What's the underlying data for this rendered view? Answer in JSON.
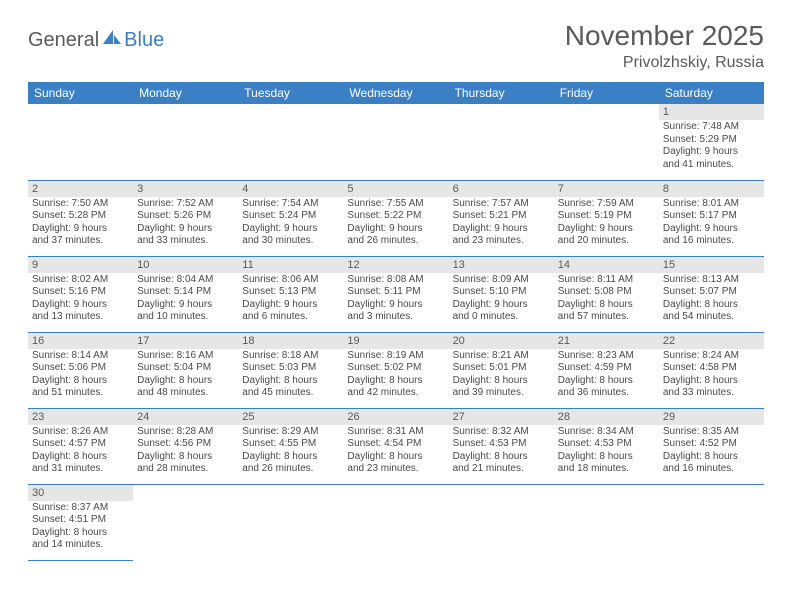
{
  "logo": {
    "part1": "General",
    "part2": "Blue"
  },
  "title": "November 2025",
  "location": "Privolzhskiy, Russia",
  "colors": {
    "header_bg": "#3b7fc4",
    "header_text": "#ffffff",
    "daynum_bg": "#e6e6e6",
    "text": "#5a5a5a",
    "cell_border": "#3b7fc4",
    "background": "#ffffff"
  },
  "weekdays": [
    "Sunday",
    "Monday",
    "Tuesday",
    "Wednesday",
    "Thursday",
    "Friday",
    "Saturday"
  ],
  "days": {
    "1": {
      "sunrise": "7:48 AM",
      "sunset": "5:29 PM",
      "daylight": "9 hours and 41 minutes."
    },
    "2": {
      "sunrise": "7:50 AM",
      "sunset": "5:28 PM",
      "daylight": "9 hours and 37 minutes."
    },
    "3": {
      "sunrise": "7:52 AM",
      "sunset": "5:26 PM",
      "daylight": "9 hours and 33 minutes."
    },
    "4": {
      "sunrise": "7:54 AM",
      "sunset": "5:24 PM",
      "daylight": "9 hours and 30 minutes."
    },
    "5": {
      "sunrise": "7:55 AM",
      "sunset": "5:22 PM",
      "daylight": "9 hours and 26 minutes."
    },
    "6": {
      "sunrise": "7:57 AM",
      "sunset": "5:21 PM",
      "daylight": "9 hours and 23 minutes."
    },
    "7": {
      "sunrise": "7:59 AM",
      "sunset": "5:19 PM",
      "daylight": "9 hours and 20 minutes."
    },
    "8": {
      "sunrise": "8:01 AM",
      "sunset": "5:17 PM",
      "daylight": "9 hours and 16 minutes."
    },
    "9": {
      "sunrise": "8:02 AM",
      "sunset": "5:16 PM",
      "daylight": "9 hours and 13 minutes."
    },
    "10": {
      "sunrise": "8:04 AM",
      "sunset": "5:14 PM",
      "daylight": "9 hours and 10 minutes."
    },
    "11": {
      "sunrise": "8:06 AM",
      "sunset": "5:13 PM",
      "daylight": "9 hours and 6 minutes."
    },
    "12": {
      "sunrise": "8:08 AM",
      "sunset": "5:11 PM",
      "daylight": "9 hours and 3 minutes."
    },
    "13": {
      "sunrise": "8:09 AM",
      "sunset": "5:10 PM",
      "daylight": "9 hours and 0 minutes."
    },
    "14": {
      "sunrise": "8:11 AM",
      "sunset": "5:08 PM",
      "daylight": "8 hours and 57 minutes."
    },
    "15": {
      "sunrise": "8:13 AM",
      "sunset": "5:07 PM",
      "daylight": "8 hours and 54 minutes."
    },
    "16": {
      "sunrise": "8:14 AM",
      "sunset": "5:06 PM",
      "daylight": "8 hours and 51 minutes."
    },
    "17": {
      "sunrise": "8:16 AM",
      "sunset": "5:04 PM",
      "daylight": "8 hours and 48 minutes."
    },
    "18": {
      "sunrise": "8:18 AM",
      "sunset": "5:03 PM",
      "daylight": "8 hours and 45 minutes."
    },
    "19": {
      "sunrise": "8:19 AM",
      "sunset": "5:02 PM",
      "daylight": "8 hours and 42 minutes."
    },
    "20": {
      "sunrise": "8:21 AM",
      "sunset": "5:01 PM",
      "daylight": "8 hours and 39 minutes."
    },
    "21": {
      "sunrise": "8:23 AM",
      "sunset": "4:59 PM",
      "daylight": "8 hours and 36 minutes."
    },
    "22": {
      "sunrise": "8:24 AM",
      "sunset": "4:58 PM",
      "daylight": "8 hours and 33 minutes."
    },
    "23": {
      "sunrise": "8:26 AM",
      "sunset": "4:57 PM",
      "daylight": "8 hours and 31 minutes."
    },
    "24": {
      "sunrise": "8:28 AM",
      "sunset": "4:56 PM",
      "daylight": "8 hours and 28 minutes."
    },
    "25": {
      "sunrise": "8:29 AM",
      "sunset": "4:55 PM",
      "daylight": "8 hours and 26 minutes."
    },
    "26": {
      "sunrise": "8:31 AM",
      "sunset": "4:54 PM",
      "daylight": "8 hours and 23 minutes."
    },
    "27": {
      "sunrise": "8:32 AM",
      "sunset": "4:53 PM",
      "daylight": "8 hours and 21 minutes."
    },
    "28": {
      "sunrise": "8:34 AM",
      "sunset": "4:53 PM",
      "daylight": "8 hours and 18 minutes."
    },
    "29": {
      "sunrise": "8:35 AM",
      "sunset": "4:52 PM",
      "daylight": "8 hours and 16 minutes."
    },
    "30": {
      "sunrise": "8:37 AM",
      "sunset": "4:51 PM",
      "daylight": "8 hours and 14 minutes."
    }
  },
  "labels": {
    "sunrise": "Sunrise:",
    "sunset": "Sunset:",
    "daylight": "Daylight:"
  },
  "layout": {
    "first_day_column": 6,
    "num_days": 30,
    "columns": 7
  }
}
